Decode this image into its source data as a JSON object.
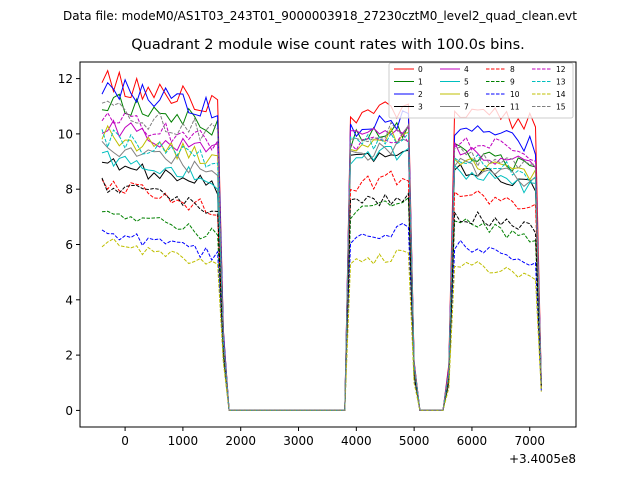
{
  "chart_data": {
    "type": "line",
    "suptitle": "Data file: modeM0/AS1T03_243T01_9000003918_27230cztM0_level2_quad_clean.evt",
    "title": "Quadrant 2 module wise count rates with 100.0s bins.",
    "xlabel": "",
    "ylabel": "",
    "x_offset_label": "+3.4005e8",
    "xlim": [
      -780,
      7800
    ],
    "ylim": [
      -0.6,
      12.6
    ],
    "x_ticks": [
      0,
      1000,
      2000,
      3000,
      4000,
      5000,
      6000,
      7000
    ],
    "y_ticks": [
      0,
      2,
      4,
      6,
      8,
      10,
      12
    ],
    "grid": false,
    "legend_position": "top-right",
    "legend_columns": 4,
    "segments": [
      {
        "x_start": -400,
        "x_end": 1600
      },
      {
        "x_start": 3900,
        "x_end": 4900
      },
      {
        "x_start": 5700,
        "x_end": 7100
      }
    ],
    "series": [
      {
        "name": "0",
        "color": "#ff0000",
        "dash": "solid",
        "seg_levels": [
          11.95,
          10.6,
          11.0
        ]
      },
      {
        "name": "1",
        "color": "#008000",
        "dash": "solid",
        "seg_levels": [
          11.2,
          9.8,
          9.4
        ]
      },
      {
        "name": "2",
        "color": "#0000ff",
        "dash": "solid",
        "seg_levels": [
          11.75,
          10.2,
          10.2
        ]
      },
      {
        "name": "3",
        "color": "#000000",
        "dash": "solid",
        "seg_levels": [
          9.0,
          9.1,
          8.8
        ]
      },
      {
        "name": "4",
        "color": "#bf00bf",
        "dash": "solid",
        "seg_levels": [
          10.3,
          9.9,
          9.5
        ]
      },
      {
        "name": "5",
        "color": "#00bfbf",
        "dash": "solid",
        "seg_levels": [
          9.2,
          9.0,
          8.6
        ]
      },
      {
        "name": "6",
        "color": "#bfbf00",
        "dash": "solid",
        "seg_levels": [
          10.0,
          9.6,
          9.0
        ]
      },
      {
        "name": "7",
        "color": "#808080",
        "dash": "solid",
        "seg_levels": [
          9.6,
          9.2,
          8.9
        ]
      },
      {
        "name": "8",
        "color": "#ff0000",
        "dash": "dashed",
        "seg_levels": [
          8.2,
          8.1,
          7.9
        ]
      },
      {
        "name": "9",
        "color": "#008000",
        "dash": "dashed",
        "seg_levels": [
          7.2,
          7.1,
          6.8
        ]
      },
      {
        "name": "10",
        "color": "#0000ff",
        "dash": "dashed",
        "seg_levels": [
          6.5,
          6.2,
          6.0
        ]
      },
      {
        "name": "11",
        "color": "#000000",
        "dash": "dashed",
        "seg_levels": [
          8.2,
          7.4,
          7.1
        ]
      },
      {
        "name": "12",
        "color": "#bf00bf",
        "dash": "dashed",
        "seg_levels": [
          10.6,
          9.5,
          9.8
        ]
      },
      {
        "name": "13",
        "color": "#00bfbf",
        "dash": "dashed",
        "seg_levels": [
          9.9,
          9.6,
          9.1
        ]
      },
      {
        "name": "14",
        "color": "#bfbf00",
        "dash": "dashed",
        "seg_levels": [
          6.1,
          5.3,
          5.4
        ]
      },
      {
        "name": "15",
        "color": "#808080",
        "dash": "dashed",
        "seg_levels": [
          10.9,
          9.9,
          9.3
        ]
      }
    ]
  }
}
